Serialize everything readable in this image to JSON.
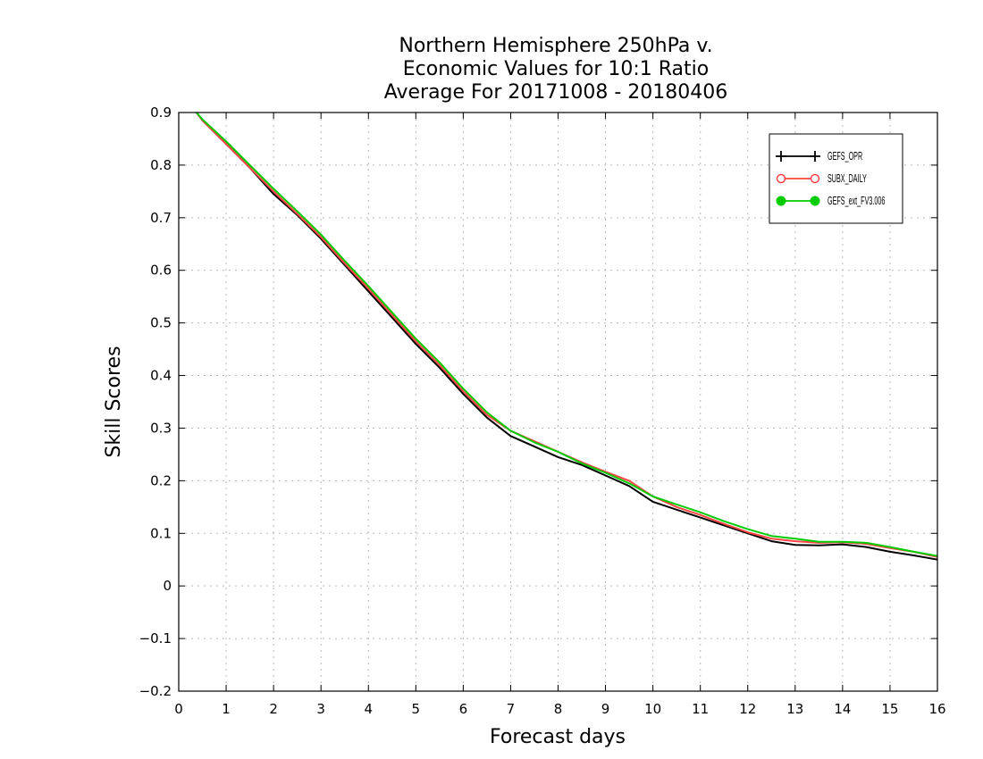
{
  "chart_data": {
    "type": "line",
    "title": [
      "Northern Hemisphere 250hPa v.",
      "Economic Values for 10:1 Ratio",
      "Average For 20171008 - 20180406"
    ],
    "xlabel": "Forecast days",
    "ylabel": "Skill Scores",
    "xlim": [
      0,
      16
    ],
    "ylim": [
      -0.2,
      0.9
    ],
    "xticks": [
      0,
      1,
      2,
      3,
      4,
      5,
      6,
      7,
      8,
      9,
      10,
      11,
      12,
      13,
      14,
      15,
      16
    ],
    "xtick_labels": [
      "0",
      "1",
      "2",
      "3",
      "4",
      "5",
      "6",
      "7",
      "8",
      "9",
      "10",
      "11",
      "12",
      "13",
      "14",
      "15",
      "16"
    ],
    "yticks": [
      -0.2,
      -0.1,
      0,
      0.1,
      0.2,
      0.3,
      0.4,
      0.5,
      0.6,
      0.7,
      0.8,
      0.9
    ],
    "ytick_labels": [
      "−0.2",
      "−0.1",
      "0",
      "0.1",
      "0.2",
      "0.3",
      "0.4",
      "0.5",
      "0.6",
      "0.7",
      "0.8",
      "0.9"
    ],
    "grid": true,
    "legend_position": "top-right",
    "series": [
      {
        "name": "GEFS_OPR",
        "color": "#000000",
        "marker": "plus",
        "x": [
          0.375,
          0.5,
          1,
          1.5,
          2,
          2.5,
          3,
          3.5,
          4,
          4.5,
          5,
          5.5,
          6,
          6.5,
          7,
          7.5,
          8,
          8.5,
          9,
          9.5,
          10,
          10.5,
          11,
          11.5,
          12,
          12.5,
          13,
          13.5,
          14,
          14.5,
          15,
          15.5,
          16
        ],
        "y": [
          0.9,
          0.885,
          0.84,
          0.795,
          0.745,
          0.705,
          0.66,
          0.61,
          0.56,
          0.51,
          0.46,
          0.415,
          0.365,
          0.32,
          0.285,
          0.265,
          0.245,
          0.23,
          0.21,
          0.19,
          0.16,
          0.145,
          0.13,
          0.115,
          0.1,
          0.085,
          0.078,
          0.077,
          0.079,
          0.074,
          0.065,
          0.058,
          0.05
        ]
      },
      {
        "name": "SUBX_DAILY",
        "color": "#ff4444",
        "marker": "open-circle",
        "x": [
          0.375,
          0.5,
          1,
          1.5,
          2,
          2.5,
          3,
          3.5,
          4,
          4.5,
          5,
          5.5,
          6,
          6.5,
          7,
          7.5,
          8,
          8.5,
          9,
          9.5,
          10,
          10.5,
          11,
          11.5,
          12,
          12.5,
          13,
          13.5,
          14,
          14.5,
          15,
          15.5,
          16
        ],
        "y": [
          0.9,
          0.885,
          0.84,
          0.795,
          0.75,
          0.707,
          0.663,
          0.613,
          0.565,
          0.515,
          0.465,
          0.42,
          0.37,
          0.325,
          0.295,
          0.275,
          0.255,
          0.235,
          0.217,
          0.2,
          0.17,
          0.15,
          0.135,
          0.118,
          0.102,
          0.09,
          0.085,
          0.082,
          0.083,
          0.08,
          0.072,
          0.065,
          0.055
        ]
      },
      {
        "name": "GEFS_ext_FV3.006",
        "color": "#00cc00",
        "marker": "filled-circle",
        "x": [
          0.375,
          0.5,
          1,
          1.5,
          2,
          2.5,
          3,
          3.5,
          4,
          4.5,
          5,
          5.5,
          6,
          6.5,
          7,
          7.5,
          8,
          8.5,
          9,
          9.5,
          10,
          10.5,
          11,
          11.5,
          12,
          12.5,
          13,
          13.5,
          14,
          14.5,
          15,
          15.5,
          16
        ],
        "y": [
          0.9,
          0.887,
          0.845,
          0.8,
          0.755,
          0.712,
          0.668,
          0.618,
          0.57,
          0.52,
          0.47,
          0.425,
          0.375,
          0.33,
          0.295,
          0.273,
          0.255,
          0.233,
          0.215,
          0.195,
          0.17,
          0.155,
          0.14,
          0.123,
          0.108,
          0.095,
          0.09,
          0.084,
          0.084,
          0.082,
          0.074,
          0.065,
          0.057
        ]
      }
    ]
  }
}
